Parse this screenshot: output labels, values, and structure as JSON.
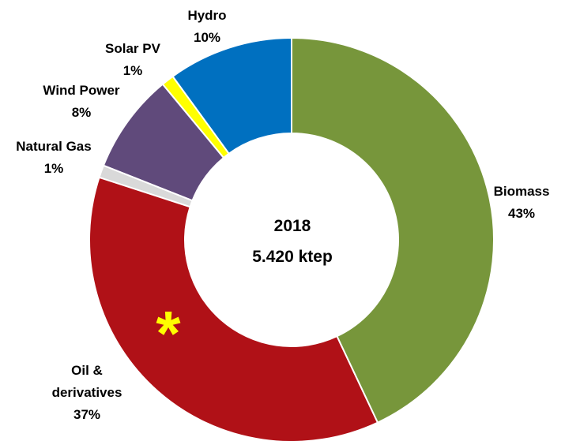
{
  "chart_data": {
    "type": "donut",
    "categories": [
      "Biomass",
      "Oil & derivatives",
      "Natural Gas",
      "Wind Power",
      "Solar PV",
      "Hydro"
    ],
    "values": [
      43,
      37,
      1,
      8,
      1,
      10
    ],
    "value_labels": [
      "43%",
      "37%",
      "1%",
      "8%",
      "1%",
      "10%"
    ],
    "colors": [
      "#77963b",
      "#b01117",
      "#d9d9d9",
      "#604a7b",
      "#ffff00",
      "#0070c0"
    ],
    "center_label": [
      "2018",
      "5.420 ktep"
    ],
    "annotation": "*"
  }
}
